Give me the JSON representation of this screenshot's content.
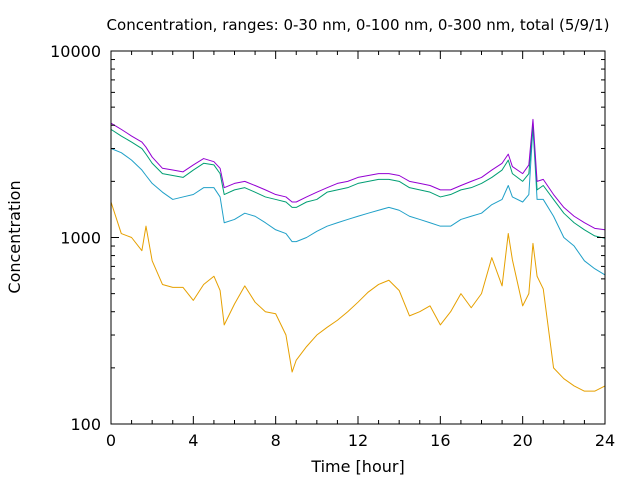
{
  "chart_data": {
    "type": "line",
    "title": "Concentration, ranges: 0-30 nm, 0-100 nm, 0-300 nm, total (5/9/1)",
    "xlabel": "Time [hour]",
    "ylabel": "Concentration",
    "xlim": [
      0,
      24
    ],
    "ylim": [
      100,
      10000
    ],
    "yscale": "log",
    "grid": false,
    "xticks": [
      0,
      4,
      8,
      12,
      16,
      20,
      24
    ],
    "xtick_labels": [
      "0",
      "4",
      "8",
      "12",
      "16",
      "20",
      "24"
    ],
    "yticks": [
      100,
      1000,
      10000
    ],
    "ytick_labels": [
      "100",
      "1000",
      "10000"
    ],
    "colors": [
      "#e6a000",
      "#20a0c8",
      "#009e73",
      "#9400d3"
    ],
    "x": [
      0,
      0.5,
      1,
      1.5,
      1.7,
      2,
      2.5,
      3,
      3.5,
      4,
      4.5,
      5,
      5.3,
      5.5,
      6,
      6.5,
      7,
      7.5,
      8,
      8.5,
      8.8,
      9,
      9.5,
      10,
      10.5,
      11,
      11.5,
      12,
      12.5,
      13,
      13.5,
      14,
      14.5,
      15,
      15.5,
      16,
      16.5,
      17,
      17.5,
      18,
      18.5,
      19,
      19.3,
      19.5,
      20,
      20.3,
      20.5,
      20.7,
      21,
      21.5,
      22,
      22.5,
      23,
      23.5,
      24
    ],
    "series": [
      {
        "values": [
          1550,
          1050,
          1000,
          850,
          1150,
          750,
          560,
          540,
          540,
          460,
          560,
          620,
          520,
          340,
          440,
          550,
          450,
          400,
          390,
          300,
          190,
          220,
          260,
          300,
          330,
          360,
          400,
          450,
          510,
          560,
          590,
          520,
          380,
          400,
          430,
          340,
          400,
          500,
          420,
          500,
          780,
          550,
          1050,
          760,
          430,
          500,
          930,
          620,
          530,
          200,
          175,
          160,
          150,
          150,
          160
        ]
      },
      {
        "values": [
          3000,
          2850,
          2600,
          2300,
          2150,
          1950,
          1750,
          1600,
          1650,
          1700,
          1850,
          1850,
          1650,
          1200,
          1250,
          1350,
          1300,
          1200,
          1100,
          1050,
          950,
          950,
          1000,
          1080,
          1150,
          1200,
          1250,
          1300,
          1350,
          1400,
          1450,
          1400,
          1300,
          1250,
          1200,
          1150,
          1150,
          1250,
          1300,
          1350,
          1500,
          1600,
          1900,
          1650,
          1550,
          1700,
          3900,
          1600,
          1600,
          1300,
          1000,
          900,
          750,
          680,
          630
        ]
      },
      {
        "values": [
          3800,
          3500,
          3250,
          3000,
          2800,
          2500,
          2200,
          2150,
          2100,
          2300,
          2500,
          2450,
          2200,
          1700,
          1800,
          1850,
          1750,
          1650,
          1600,
          1550,
          1450,
          1450,
          1550,
          1600,
          1750,
          1800,
          1850,
          1950,
          2000,
          2050,
          2050,
          2000,
          1850,
          1800,
          1750,
          1650,
          1700,
          1800,
          1850,
          1950,
          2100,
          2300,
          2600,
          2200,
          2000,
          2200,
          4000,
          1800,
          1900,
          1600,
          1350,
          1200,
          1100,
          1020,
          990
        ]
      },
      {
        "values": [
          4100,
          3800,
          3500,
          3250,
          3050,
          2700,
          2350,
          2300,
          2250,
          2450,
          2650,
          2550,
          2350,
          1850,
          1950,
          2000,
          1900,
          1800,
          1700,
          1650,
          1550,
          1550,
          1650,
          1750,
          1850,
          1950,
          2000,
          2100,
          2150,
          2200,
          2200,
          2150,
          2000,
          1950,
          1900,
          1800,
          1800,
          1900,
          2000,
          2100,
          2300,
          2500,
          2800,
          2400,
          2200,
          2450,
          4300,
          2000,
          2050,
          1700,
          1450,
          1300,
          1200,
          1120,
          1100
        ]
      }
    ]
  }
}
